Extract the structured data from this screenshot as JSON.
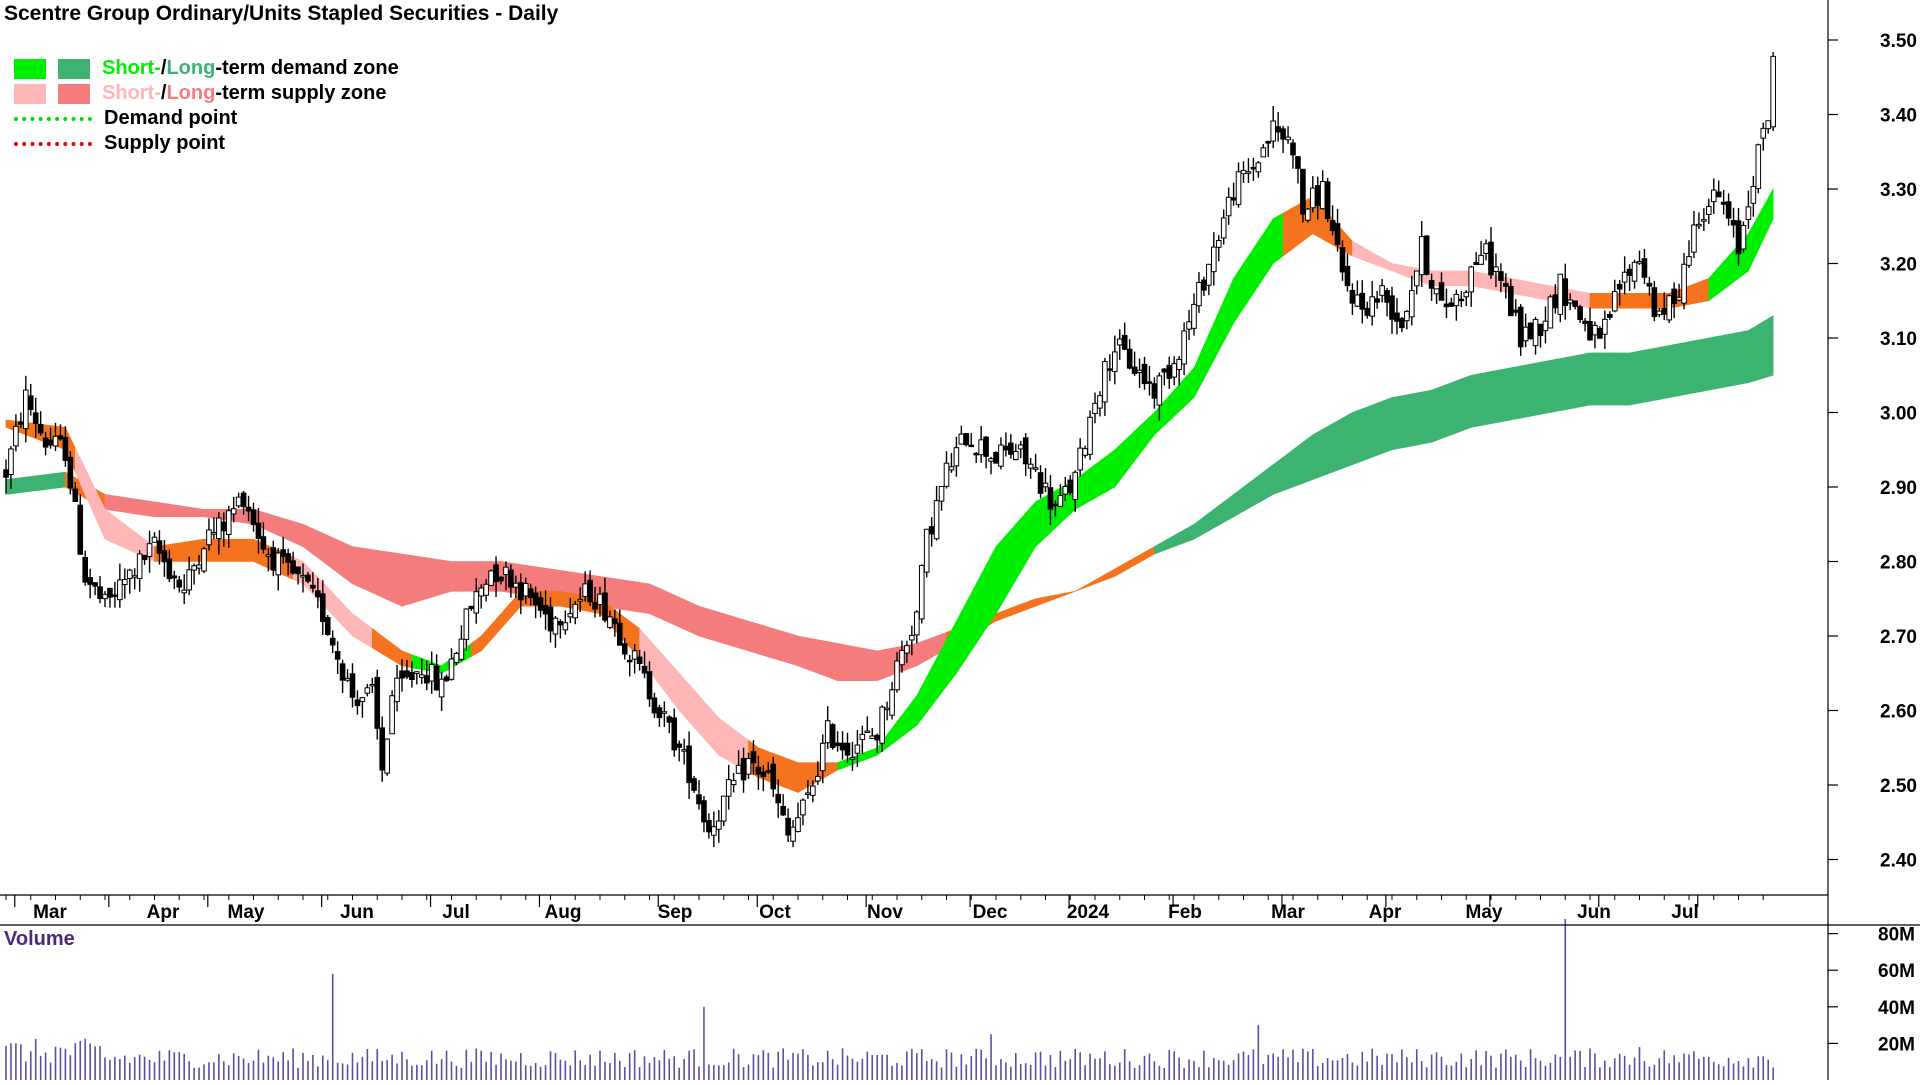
{
  "chart_data": {
    "type": "candlestick",
    "title": "Scentre Group Ordinary/Units Stapled Securities - Daily",
    "price_axis": {
      "ylim": [
        2.32,
        3.56
      ],
      "ticks": [
        "3.50",
        "3.40",
        "3.30",
        "3.20",
        "3.10",
        "3.00",
        "2.90",
        "2.80",
        "2.70",
        "2.60",
        "2.50",
        "2.40"
      ]
    },
    "months": [
      "Mar",
      "Apr",
      "May",
      "Jun",
      "Jul",
      "Aug",
      "Sep",
      "Oct",
      "Nov",
      "Dec",
      "2024",
      "Feb",
      "Mar",
      "Apr",
      "May",
      "Jun",
      "Jul"
    ],
    "legend": {
      "demand_short": "Short-",
      "demand_sep": " / ",
      "demand_long": "Long",
      "demand_rest": "-term demand zone",
      "supply_short": "Short-",
      "supply_sep": " / ",
      "supply_long": "Long",
      "supply_rest": "-term supply zone",
      "demand_point": "Demand point",
      "supply_point": "Supply point"
    },
    "colors": {
      "short_demand": "#00ee00",
      "long_demand": "#3cb371",
      "short_supply": "#ffb6b6",
      "long_supply": "#f47c7c",
      "transition": "#f5731f",
      "candle": "#000000",
      "volume": "#5a4fa0"
    },
    "price_path": [
      [
        0,
        2.92
      ],
      [
        4,
        3.02
      ],
      [
        8,
        2.96
      ],
      [
        12,
        2.95
      ],
      [
        16,
        2.78
      ],
      [
        20,
        2.74
      ],
      [
        26,
        2.79
      ],
      [
        30,
        2.82
      ],
      [
        36,
        2.76
      ],
      [
        40,
        2.83
      ],
      [
        44,
        2.85
      ],
      [
        48,
        2.89
      ],
      [
        52,
        2.82
      ],
      [
        56,
        2.79
      ],
      [
        60,
        2.77
      ],
      [
        64,
        2.73
      ],
      [
        70,
        2.62
      ],
      [
        74,
        2.62
      ],
      [
        76,
        2.52
      ],
      [
        78,
        2.62
      ],
      [
        84,
        2.66
      ],
      [
        88,
        2.63
      ],
      [
        94,
        2.74
      ],
      [
        98,
        2.79
      ],
      [
        102,
        2.78
      ],
      [
        106,
        2.75
      ],
      [
        110,
        2.72
      ],
      [
        114,
        2.74
      ],
      [
        118,
        2.76
      ],
      [
        122,
        2.73
      ],
      [
        126,
        2.68
      ],
      [
        132,
        2.6
      ],
      [
        138,
        2.52
      ],
      [
        142,
        2.44
      ],
      [
        146,
        2.49
      ],
      [
        150,
        2.53
      ],
      [
        154,
        2.51
      ],
      [
        158,
        2.43
      ],
      [
        162,
        2.48
      ],
      [
        166,
        2.57
      ],
      [
        170,
        2.55
      ],
      [
        176,
        2.57
      ],
      [
        180,
        2.66
      ],
      [
        184,
        2.73
      ],
      [
        186,
        2.83
      ],
      [
        190,
        2.92
      ],
      [
        194,
        2.97
      ],
      [
        200,
        2.94
      ],
      [
        204,
        2.95
      ],
      [
        208,
        2.92
      ],
      [
        212,
        2.87
      ],
      [
        216,
        2.91
      ],
      [
        220,
        3.02
      ],
      [
        224,
        3.09
      ],
      [
        228,
        3.06
      ],
      [
        232,
        3.03
      ],
      [
        236,
        3.07
      ],
      [
        240,
        3.14
      ],
      [
        244,
        3.22
      ],
      [
        248,
        3.3
      ],
      [
        252,
        3.33
      ],
      [
        256,
        3.38
      ],
      [
        260,
        3.36
      ],
      [
        262,
        3.27
      ],
      [
        266,
        3.3
      ],
      [
        270,
        3.18
      ],
      [
        274,
        3.14
      ],
      [
        278,
        3.16
      ],
      [
        282,
        3.12
      ],
      [
        286,
        3.22
      ],
      [
        290,
        3.14
      ],
      [
        294,
        3.16
      ],
      [
        298,
        3.22
      ],
      [
        302,
        3.18
      ],
      [
        306,
        3.1
      ],
      [
        310,
        3.12
      ],
      [
        314,
        3.17
      ],
      [
        318,
        3.13
      ],
      [
        322,
        3.09
      ],
      [
        326,
        3.17
      ],
      [
        330,
        3.21
      ],
      [
        334,
        3.12
      ],
      [
        338,
        3.17
      ],
      [
        342,
        3.27
      ],
      [
        346,
        3.29
      ],
      [
        350,
        3.22
      ],
      [
        353,
        3.32
      ],
      [
        356,
        3.4
      ],
      [
        357,
        3.48
      ]
    ],
    "short_upper": [
      [
        0,
        2.99
      ],
      [
        12,
        2.98
      ],
      [
        20,
        2.87
      ],
      [
        30,
        2.82
      ],
      [
        40,
        2.83
      ],
      [
        50,
        2.83
      ],
      [
        60,
        2.8
      ],
      [
        70,
        2.73
      ],
      [
        80,
        2.68
      ],
      [
        88,
        2.66
      ],
      [
        96,
        2.7
      ],
      [
        104,
        2.76
      ],
      [
        112,
        2.76
      ],
      [
        120,
        2.75
      ],
      [
        128,
        2.71
      ],
      [
        136,
        2.65
      ],
      [
        144,
        2.59
      ],
      [
        152,
        2.55
      ],
      [
        160,
        2.53
      ],
      [
        168,
        2.53
      ],
      [
        176,
        2.55
      ],
      [
        184,
        2.62
      ],
      [
        192,
        2.72
      ],
      [
        200,
        2.82
      ],
      [
        208,
        2.88
      ],
      [
        216,
        2.91
      ],
      [
        224,
        2.95
      ],
      [
        232,
        3.0
      ],
      [
        240,
        3.06
      ],
      [
        248,
        3.18
      ],
      [
        256,
        3.26
      ],
      [
        264,
        3.29
      ],
      [
        272,
        3.23
      ],
      [
        280,
        3.2
      ],
      [
        288,
        3.19
      ],
      [
        296,
        3.19
      ],
      [
        304,
        3.18
      ],
      [
        312,
        3.17
      ],
      [
        320,
        3.16
      ],
      [
        328,
        3.16
      ],
      [
        336,
        3.16
      ],
      [
        344,
        3.18
      ],
      [
        352,
        3.24
      ],
      [
        357,
        3.3
      ]
    ],
    "short_lower": [
      [
        0,
        2.98
      ],
      [
        12,
        2.95
      ],
      [
        20,
        2.83
      ],
      [
        30,
        2.8
      ],
      [
        40,
        2.8
      ],
      [
        50,
        2.8
      ],
      [
        60,
        2.77
      ],
      [
        70,
        2.7
      ],
      [
        80,
        2.66
      ],
      [
        88,
        2.65
      ],
      [
        96,
        2.68
      ],
      [
        104,
        2.74
      ],
      [
        112,
        2.74
      ],
      [
        120,
        2.73
      ],
      [
        128,
        2.67
      ],
      [
        136,
        2.6
      ],
      [
        144,
        2.54
      ],
      [
        152,
        2.51
      ],
      [
        160,
        2.49
      ],
      [
        168,
        2.52
      ],
      [
        176,
        2.54
      ],
      [
        184,
        2.58
      ],
      [
        192,
        2.65
      ],
      [
        200,
        2.73
      ],
      [
        208,
        2.82
      ],
      [
        216,
        2.87
      ],
      [
        224,
        2.9
      ],
      [
        232,
        2.97
      ],
      [
        240,
        3.02
      ],
      [
        248,
        3.12
      ],
      [
        256,
        3.2
      ],
      [
        264,
        3.24
      ],
      [
        272,
        3.21
      ],
      [
        280,
        3.19
      ],
      [
        288,
        3.17
      ],
      [
        296,
        3.17
      ],
      [
        304,
        3.16
      ],
      [
        312,
        3.15
      ],
      [
        320,
        3.14
      ],
      [
        328,
        3.14
      ],
      [
        336,
        3.14
      ],
      [
        344,
        3.15
      ],
      [
        352,
        3.19
      ],
      [
        357,
        3.26
      ]
    ],
    "long_upper": [
      [
        0,
        2.91
      ],
      [
        12,
        2.92
      ],
      [
        20,
        2.89
      ],
      [
        30,
        2.88
      ],
      [
        40,
        2.87
      ],
      [
        50,
        2.87
      ],
      [
        60,
        2.85
      ],
      [
        70,
        2.82
      ],
      [
        80,
        2.81
      ],
      [
        90,
        2.8
      ],
      [
        100,
        2.8
      ],
      [
        110,
        2.79
      ],
      [
        120,
        2.78
      ],
      [
        130,
        2.77
      ],
      [
        140,
        2.74
      ],
      [
        150,
        2.72
      ],
      [
        160,
        2.7
      ],
      [
        168,
        2.69
      ],
      [
        176,
        2.68
      ],
      [
        184,
        2.69
      ],
      [
        192,
        2.71
      ],
      [
        200,
        2.73
      ],
      [
        208,
        2.75
      ],
      [
        216,
        2.76
      ],
      [
        224,
        2.79
      ],
      [
        232,
        2.82
      ],
      [
        240,
        2.85
      ],
      [
        248,
        2.89
      ],
      [
        256,
        2.93
      ],
      [
        264,
        2.97
      ],
      [
        272,
        3.0
      ],
      [
        280,
        3.02
      ],
      [
        288,
        3.03
      ],
      [
        296,
        3.05
      ],
      [
        304,
        3.06
      ],
      [
        312,
        3.07
      ],
      [
        320,
        3.08
      ],
      [
        328,
        3.08
      ],
      [
        336,
        3.09
      ],
      [
        344,
        3.1
      ],
      [
        352,
        3.11
      ],
      [
        357,
        3.13
      ]
    ],
    "long_lower": [
      [
        0,
        2.89
      ],
      [
        12,
        2.9
      ],
      [
        20,
        2.87
      ],
      [
        30,
        2.86
      ],
      [
        40,
        2.86
      ],
      [
        50,
        2.85
      ],
      [
        60,
        2.82
      ],
      [
        70,
        2.77
      ],
      [
        80,
        2.74
      ],
      [
        90,
        2.76
      ],
      [
        100,
        2.76
      ],
      [
        110,
        2.75
      ],
      [
        120,
        2.74
      ],
      [
        130,
        2.73
      ],
      [
        140,
        2.7
      ],
      [
        150,
        2.68
      ],
      [
        160,
        2.66
      ],
      [
        168,
        2.64
      ],
      [
        176,
        2.64
      ],
      [
        184,
        2.66
      ],
      [
        192,
        2.69
      ],
      [
        200,
        2.72
      ],
      [
        208,
        2.74
      ],
      [
        216,
        2.76
      ],
      [
        224,
        2.78
      ],
      [
        232,
        2.81
      ],
      [
        240,
        2.83
      ],
      [
        248,
        2.86
      ],
      [
        256,
        2.89
      ],
      [
        264,
        2.91
      ],
      [
        272,
        2.93
      ],
      [
        280,
        2.95
      ],
      [
        288,
        2.96
      ],
      [
        296,
        2.98
      ],
      [
        304,
        2.99
      ],
      [
        312,
        3.0
      ],
      [
        320,
        3.01
      ],
      [
        328,
        3.01
      ],
      [
        336,
        3.02
      ],
      [
        344,
        3.03
      ],
      [
        352,
        3.04
      ],
      [
        357,
        3.05
      ]
    ],
    "volume_axis": {
      "ylim": [
        0,
        90
      ],
      "ticks": [
        "80M",
        "60M",
        "40M",
        "20M"
      ]
    },
    "volume_spikes": [
      [
        66,
        58
      ],
      [
        141,
        40
      ],
      [
        199,
        25
      ],
      [
        253,
        30
      ],
      [
        315,
        88
      ],
      [
        330,
        18
      ],
      [
        340,
        14
      ]
    ],
    "volume_base": 12
  }
}
